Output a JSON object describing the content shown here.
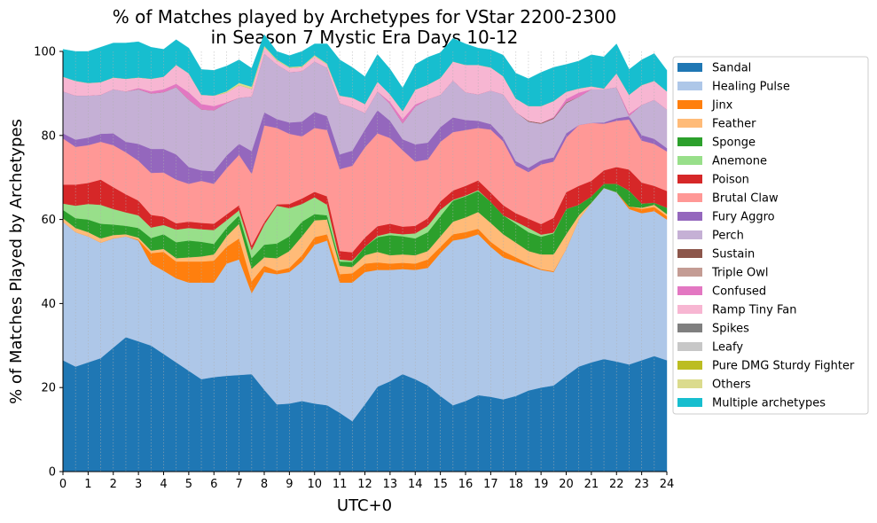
{
  "chart_data": {
    "type": "area",
    "stacked": true,
    "title_line1": "% of Matches played by Archetypes for VStar 2200-2300",
    "title_line2": "in Season 7 Mystic Era Days 10-12",
    "xlabel": "UTC+0",
    "ylabel": "% of Matches Played by Archetypes",
    "xlim": [
      0,
      24
    ],
    "ylim": [
      0,
      100
    ],
    "x_ticks": [
      "0",
      "1",
      "2",
      "3",
      "4",
      "5",
      "6",
      "7",
      "8",
      "9",
      "10",
      "11",
      "12",
      "13",
      "14",
      "15",
      "16",
      "17",
      "18",
      "19",
      "20",
      "21",
      "22",
      "23",
      "24"
    ],
    "y_ticks": [
      "0",
      "20",
      "40",
      "60",
      "80",
      "100"
    ],
    "grid": "vertical dotted lines at half-hour intervals",
    "legend_position": "right, outside plot",
    "x": [
      0,
      0.5,
      1,
      1.5,
      2,
      2.5,
      3,
      3.5,
      4,
      4.5,
      5,
      5.5,
      6,
      6.5,
      7,
      7.5,
      8,
      8.5,
      9,
      9.5,
      10,
      10.5,
      11,
      11.5,
      12,
      12.5,
      13,
      13.5,
      14,
      14.5,
      15,
      15.5,
      16,
      16.5,
      17,
      17.5,
      18,
      18.5,
      19,
      19.5,
      20,
      20.5,
      21,
      21.5,
      22,
      22.5,
      23,
      23.5,
      24
    ],
    "series": [
      {
        "name": "Sandal",
        "color": "#1f77b4",
        "values": [
          26.5,
          25,
          26,
          27,
          29.5,
          32,
          31,
          30,
          28,
          26,
          24,
          22,
          22.5,
          22.8,
          23,
          23.2,
          19.5,
          16,
          16.2,
          16.8,
          16.2,
          15.8,
          14,
          12,
          16,
          20.2,
          21.5,
          23.2,
          22,
          20.5,
          18,
          15.8,
          16.8,
          18.2,
          17.8,
          17.2,
          18,
          19.3,
          20,
          20.5,
          22.8,
          25,
          26,
          26.8,
          26.2,
          25.5,
          26.5,
          27.5,
          26.5
        ]
      },
      {
        "name": "Healing Pulse",
        "color": "#aec7e8",
        "values": [
          33,
          32,
          30,
          27.5,
          26,
          24,
          24,
          19.5,
          19.8,
          20,
          21,
          23,
          22.5,
          26.7,
          27.5,
          19.3,
          28,
          31,
          31.3,
          33.2,
          37.8,
          39.2,
          31,
          33,
          31.5,
          27.8,
          26.5,
          25,
          26,
          28,
          34,
          39.2,
          38.7,
          38.3,
          35.7,
          33.8,
          32,
          29.7,
          28,
          27,
          30.2,
          35,
          38,
          40.7,
          40.3,
          37,
          35,
          34.5,
          33.5
        ]
      },
      {
        "name": "Jinx",
        "color": "#ff7f0e",
        "values": [
          0,
          0,
          0,
          0,
          0,
          0,
          0.2,
          2.5,
          4.5,
          4,
          5,
          5,
          5.2,
          4,
          5,
          2.8,
          1.5,
          0.8,
          1,
          1.5,
          1.8,
          1.5,
          2,
          2.2,
          2,
          1.8,
          1.5,
          1.5,
          1.5,
          2,
          1.5,
          1.5,
          1.5,
          1.3,
          1.2,
          1.5,
          1,
          0.5,
          0.2,
          0.2,
          0,
          0,
          0,
          0,
          0,
          0.6,
          1,
          1,
          0.8
        ]
      },
      {
        "name": "Feather",
        "color": "#ffbb78",
        "values": [
          0.8,
          1,
          1,
          1,
          0.8,
          0.5,
          0.5,
          0.6,
          0.7,
          0.8,
          1,
          1.2,
          1.5,
          2.5,
          3.5,
          3,
          2,
          3,
          4,
          4.5,
          4,
          3.5,
          2,
          1.5,
          2,
          2.5,
          2,
          2,
          2,
          2,
          2.5,
          3,
          3.5,
          4,
          4.5,
          4,
          3.5,
          3,
          3.5,
          4,
          3.5,
          1,
          0,
          0,
          0,
          0,
          0.3,
          0.5,
          0.5
        ]
      },
      {
        "name": "Sponge",
        "color": "#2ca02c",
        "values": [
          2,
          2.3,
          3,
          3.5,
          2.5,
          2,
          2.3,
          3,
          3.5,
          3.8,
          4,
          3.5,
          2.5,
          2,
          2,
          2.5,
          3,
          3.5,
          3.5,
          3.5,
          1.5,
          1,
          1,
          1.2,
          2,
          3.5,
          4.8,
          4.3,
          4,
          4.5,
          4.8,
          5,
          5,
          5,
          5,
          4.5,
          4.5,
          4.5,
          4.2,
          5,
          6,
          2.5,
          1.5,
          1,
          2,
          3.8,
          1,
          0.5,
          1.5
        ]
      },
      {
        "name": "Anemone",
        "color": "#98df8a",
        "values": [
          1.5,
          3,
          3.7,
          4.5,
          3.7,
          3.2,
          3,
          2.5,
          2.2,
          3,
          3,
          3,
          3.3,
          1.8,
          1.2,
          2,
          4.8,
          9,
          6.7,
          4.2,
          4,
          2.5,
          0.5,
          0.3,
          0,
          0.3,
          0.5,
          0.5,
          1.2,
          1.5,
          1.5,
          0.2,
          0.2,
          0.2,
          0,
          0,
          0.5,
          1,
          0.5,
          0.2,
          0,
          0,
          0,
          0,
          0,
          0,
          0,
          0,
          0
        ]
      },
      {
        "name": "Poison",
        "color": "#d62728",
        "values": [
          4.5,
          5,
          5,
          6,
          5.2,
          4.3,
          3.5,
          3,
          2,
          1.5,
          1.5,
          1.5,
          1.5,
          1.4,
          1.2,
          1,
          0.6,
          0.3,
          1,
          1.3,
          1.3,
          2,
          2,
          2,
          2.2,
          2.3,
          2.2,
          1.8,
          1.8,
          1.8,
          2,
          2.2,
          2.3,
          2.3,
          2.2,
          2.4,
          2,
          2.2,
          2.5,
          3.5,
          4,
          4.5,
          3.7,
          3.2,
          4,
          5,
          5,
          4,
          4
        ]
      },
      {
        "name": "Brutal Claw",
        "color": "#ff9896",
        "values": [
          11,
          9,
          9,
          9,
          10,
          10,
          9.5,
          10,
          10.5,
          10.4,
          9,
          10,
          9.5,
          11,
          12,
          17.1,
          23,
          18.2,
          16.7,
          14.8,
          15.2,
          15.8,
          19.5,
          20.6,
          21.5,
          22.1,
          20.4,
          18.2,
          15.3,
          14,
          14.2,
          13.9,
          13.3,
          12.5,
          15,
          15.2,
          11.4,
          11.1,
          14.2,
          13.4,
          13,
          14.5,
          13.8,
          11.1,
          11,
          11.9,
          10,
          10,
          9.4
        ]
      },
      {
        "name": "Fury Aggro",
        "color": "#9467bd",
        "values": [
          1.2,
          1.7,
          1.8,
          1.9,
          2.8,
          2.5,
          4,
          5.7,
          5.6,
          6,
          4,
          2.5,
          3,
          3,
          2.6,
          5.4,
          3.1,
          2.1,
          2.7,
          3.5,
          3.8,
          3.3,
          3.5,
          3.6,
          4.2,
          5.5,
          4.1,
          2.6,
          4.1,
          4,
          3.5,
          3.5,
          2.4,
          1.7,
          1.3,
          0.9,
          1,
          1,
          1,
          1,
          1,
          0,
          0,
          0.3,
          0.6,
          0.8,
          1.3,
          1.2,
          0.8
        ]
      },
      {
        "name": "Perch",
        "color": "#c5b0d5",
        "values": [
          10,
          10.5,
          10,
          9.3,
          10.5,
          12,
          13,
          13.2,
          13.5,
          16,
          16,
          14.5,
          14.5,
          12.5,
          11,
          13,
          14,
          13,
          12,
          12,
          12,
          11.5,
          12.2,
          10.3,
          4,
          4.5,
          4,
          3.8,
          9,
          10.3,
          7.7,
          8.8,
          6.6,
          6.3,
          8,
          10.3,
          11.7,
          11,
          8.7,
          9.2,
          7.2,
          6.7,
          8,
          7.9,
          7.4,
          0.1,
          7.2,
          9.3,
          9.2
        ]
      },
      {
        "name": "Sustain",
        "color": "#8c564b",
        "values": [
          0,
          0,
          0,
          0,
          0,
          0,
          0,
          0,
          0,
          0,
          0,
          0,
          0,
          0,
          0,
          0,
          0,
          0,
          0,
          0,
          0,
          0,
          0,
          0,
          0,
          0,
          0,
          0,
          0,
          0,
          0,
          0,
          0,
          0,
          0,
          0,
          0,
          0.2,
          0.2,
          0.2,
          0.2,
          0,
          0,
          0,
          0,
          0,
          0,
          0,
          0
        ]
      },
      {
        "name": "Triple Owl",
        "color": "#c49c94",
        "values": [
          0,
          0,
          0,
          0,
          0,
          0,
          0,
          0,
          0,
          0,
          0,
          0,
          0,
          0,
          0,
          0,
          0,
          0,
          0,
          0,
          0,
          0,
          0,
          0,
          0,
          0,
          0,
          0,
          0,
          0,
          0,
          0,
          0,
          0,
          0,
          0,
          0,
          0,
          0,
          0,
          0,
          0,
          0,
          0,
          0,
          0,
          0,
          0,
          0
        ]
      },
      {
        "name": "Confused",
        "color": "#e377c2",
        "values": [
          0,
          0,
          0,
          0,
          0,
          0,
          0.3,
          0.5,
          0.7,
          0.8,
          1.8,
          1.3,
          1,
          0.2,
          0,
          0,
          0,
          0,
          0,
          0,
          0,
          0,
          0,
          0,
          0,
          0,
          0.5,
          1,
          0.5,
          0,
          0,
          0,
          0,
          0,
          0,
          0,
          0,
          0,
          0,
          0.2,
          0.8,
          1,
          0,
          0,
          0,
          0.5,
          0,
          0,
          0
        ]
      },
      {
        "name": "Ramp Tiny Fan",
        "color": "#f7b6d2",
        "values": [
          3.5,
          3.5,
          3,
          3,
          2.8,
          3,
          2.5,
          3,
          3,
          4.5,
          4.5,
          2.2,
          2.5,
          2.3,
          3,
          1.8,
          1.5,
          1,
          1,
          1,
          1.3,
          0.8,
          1.8,
          2.3,
          2.1,
          2.3,
          1.8,
          1.9,
          3.5,
          3.5,
          4,
          4.5,
          6.5,
          7,
          5.5,
          4.3,
          3.2,
          3.5,
          4,
          3.8,
          1.7,
          1,
          0.7,
          0.2,
          3.3,
          4.5,
          4.7,
          4.5,
          4.3
        ]
      },
      {
        "name": "Spikes",
        "color": "#7f7f7f",
        "values": [
          0,
          0,
          0,
          0,
          0,
          0,
          0,
          0,
          0,
          0,
          0,
          0,
          0,
          0,
          0,
          0,
          0,
          0,
          0,
          0,
          0,
          0,
          0,
          0,
          0,
          0,
          0,
          0,
          0,
          0,
          0,
          0,
          0,
          0,
          0,
          0,
          0,
          0,
          0,
          0,
          0,
          0,
          0,
          0,
          0,
          0,
          0,
          0,
          0
        ]
      },
      {
        "name": "Leafy",
        "color": "#c7c7c7",
        "values": [
          0,
          0,
          0,
          0,
          0,
          0,
          0,
          0,
          0,
          0,
          0,
          0,
          0,
          0,
          0,
          0,
          0,
          0,
          0,
          0,
          0,
          0,
          0,
          0,
          0,
          0,
          0,
          0,
          0,
          0,
          0,
          0,
          0,
          0,
          0,
          0,
          0,
          0,
          0,
          0,
          0,
          0,
          0,
          0,
          0,
          0,
          0,
          0,
          0
        ]
      },
      {
        "name": "Pure DMG Sturdy Fighter",
        "color": "#bcbd22",
        "values": [
          0,
          0,
          0,
          0,
          0,
          0,
          0,
          0,
          0,
          0,
          0,
          0,
          0,
          0,
          0,
          0,
          0,
          0,
          0,
          0,
          0,
          0,
          0,
          0,
          0,
          0,
          0,
          0,
          0,
          0,
          0,
          0,
          0,
          0,
          0,
          0,
          0,
          0,
          0,
          0,
          0,
          0,
          0,
          0,
          0,
          0,
          0,
          0,
          0
        ]
      },
      {
        "name": "Others",
        "color": "#dbdb8d",
        "values": [
          0,
          0,
          0,
          0,
          0,
          0,
          0,
          0,
          0,
          0,
          0,
          0,
          0,
          0.3,
          0.5,
          0.5,
          0.3,
          0.2,
          0.2,
          0.2,
          0.2,
          0.2,
          0,
          0,
          0,
          0,
          0,
          0,
          0,
          0,
          0,
          0,
          0,
          0,
          0,
          0,
          0,
          0,
          0,
          0,
          0,
          0,
          0,
          0,
          0,
          0,
          0,
          0,
          0
        ]
      },
      {
        "name": "Multiple archetypes",
        "color": "#17becf",
        "values": [
          6.5,
          7,
          7.5,
          8.3,
          8.2,
          8.5,
          8.5,
          7.5,
          6.5,
          6,
          6,
          6,
          6,
          6,
          5.5,
          4.4,
          2.7,
          1.9,
          2.7,
          3.5,
          2.7,
          4.7,
          8.5,
          7.2,
          6.5,
          6.5,
          6,
          5.5,
          6,
          6.5,
          6,
          5.5,
          5,
          4,
          4.2,
          5,
          6,
          6.5,
          8,
          8,
          6.5,
          6.5,
          7.5,
          7.5,
          7,
          6,
          6,
          6.5,
          5
        ]
      }
    ]
  }
}
